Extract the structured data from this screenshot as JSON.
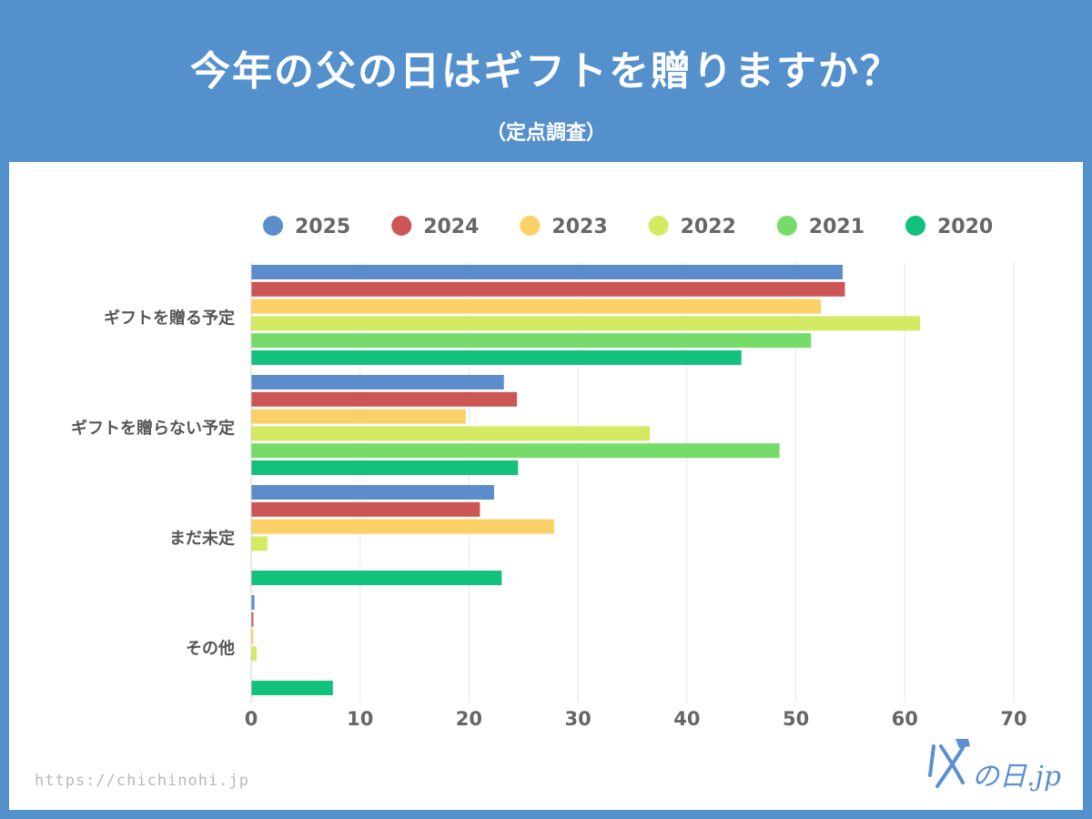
{
  "header": {
    "title": "今年の父の日はギフトを贈りますか？",
    "subtitle": "（定点調査）"
  },
  "footer": {
    "url": "https://chichinohi.jp",
    "logo_text": "の日.jp"
  },
  "chart_data": {
    "type": "bar",
    "orientation": "horizontal",
    "title": "今年の父の日はギフトを贈りますか？",
    "subtitle": "（定点調査）",
    "xlabel": "",
    "ylabel": "",
    "xlim": [
      0,
      70
    ],
    "xticks": [
      0,
      10,
      20,
      30,
      40,
      50,
      60,
      70
    ],
    "grid": true,
    "legend_position": "top",
    "categories": [
      "ギフトを贈る予定",
      "ギフトを贈らない予定",
      "まだ未定",
      "その他"
    ],
    "series": [
      {
        "name": "2025",
        "color": "#5b8ccc",
        "values": [
          54.3,
          23.2,
          22.3,
          0.3
        ]
      },
      {
        "name": "2024",
        "color": "#cc5555",
        "values": [
          54.5,
          24.4,
          21.0,
          0.2
        ]
      },
      {
        "name": "2023",
        "color": "#fbd066",
        "values": [
          52.3,
          19.7,
          27.8,
          0.2
        ]
      },
      {
        "name": "2022",
        "color": "#d4ea63",
        "values": [
          61.4,
          36.6,
          1.5,
          0.5
        ]
      },
      {
        "name": "2021",
        "color": "#75dc6a",
        "values": [
          51.4,
          48.5,
          0,
          0
        ]
      },
      {
        "name": "2020",
        "color": "#12c17b",
        "values": [
          45.0,
          24.5,
          23.0,
          7.5
        ]
      }
    ]
  }
}
